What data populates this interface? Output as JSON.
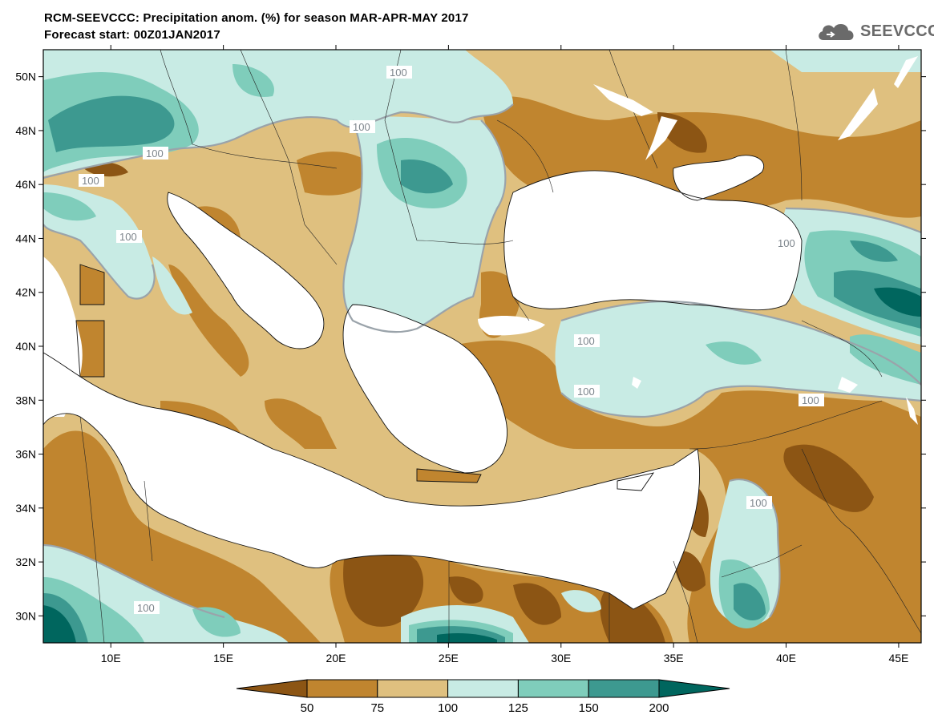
{
  "title_line1": "RCM-SEEVCCC: Precipitation anom. (%) for season MAR-APR-MAY 2017",
  "title_line2": "Forecast start: 00Z01JAN2017",
  "logo_text": "SEEVCCC",
  "map": {
    "lon_range": [
      7,
      46
    ],
    "lat_range": [
      29,
      51
    ],
    "lat_ticks": [
      {
        "value": 50,
        "label": "50N"
      },
      {
        "value": 48,
        "label": "48N"
      },
      {
        "value": 46,
        "label": "46N"
      },
      {
        "value": 44,
        "label": "44N"
      },
      {
        "value": 42,
        "label": "42N"
      },
      {
        "value": 40,
        "label": "40N"
      },
      {
        "value": 38,
        "label": "38N"
      },
      {
        "value": 36,
        "label": "36N"
      },
      {
        "value": 34,
        "label": "34N"
      },
      {
        "value": 32,
        "label": "32N"
      },
      {
        "value": 30,
        "label": "30N"
      }
    ],
    "lon_ticks": [
      {
        "value": 10,
        "label": "10E"
      },
      {
        "value": 15,
        "label": "15E"
      },
      {
        "value": 20,
        "label": "20E"
      },
      {
        "value": 25,
        "label": "25E"
      },
      {
        "value": 30,
        "label": "30E"
      },
      {
        "value": 35,
        "label": "35E"
      },
      {
        "value": 40,
        "label": "40E"
      },
      {
        "value": 45,
        "label": "45E"
      }
    ],
    "contour_label": "100"
  },
  "colorbar": {
    "colors": [
      "#8c5514",
      "#c0852f",
      "#dfc07f",
      "#c8ebe4",
      "#7fcdbb",
      "#3d9990",
      "#00665e"
    ],
    "labels": [
      "50",
      "75",
      "100",
      "125",
      "150",
      "200"
    ],
    "land_background": "#dfc07f",
    "sea_color": "#ffffff"
  }
}
